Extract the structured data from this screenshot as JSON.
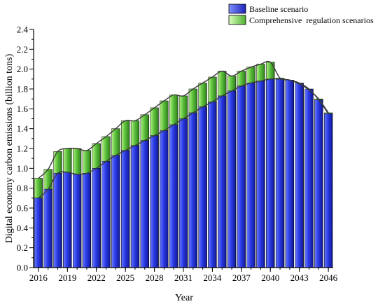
{
  "chart_data": {
    "type": "bar",
    "title": "",
    "xlabel": "Year",
    "ylabel": "Digital economy carbon emissions (billion tons)",
    "ylim": [
      0,
      2.4
    ],
    "y_ticks": [
      "0.0",
      "0.2",
      "0.4",
      "0.6",
      "0.8",
      "1.0",
      "1.2",
      "1.4",
      "1.6",
      "1.8",
      "2.0",
      "2.2",
      "2.4"
    ],
    "x_tick_labels": [
      "2016",
      "2019",
      "2022",
      "2025",
      "2028",
      "2031",
      "2034",
      "2037",
      "2040",
      "2043",
      "2046"
    ],
    "legend_position": "top-right",
    "categories": [
      2016,
      2017,
      2018,
      2019,
      2020,
      2021,
      2022,
      2023,
      2024,
      2025,
      2026,
      2027,
      2028,
      2029,
      2030,
      2031,
      2032,
      2033,
      2034,
      2035,
      2036,
      2037,
      2038,
      2039,
      2040,
      2041,
      2042,
      2043,
      2044,
      2045,
      2046
    ],
    "series": [
      {
        "name": "Baseline scenario",
        "color": "#2a2ad8",
        "values": [
          0.7,
          0.79,
          0.95,
          0.96,
          0.94,
          0.95,
          1.0,
          1.07,
          1.13,
          1.18,
          1.23,
          1.28,
          1.33,
          1.38,
          1.44,
          1.5,
          1.56,
          1.62,
          1.67,
          1.73,
          1.78,
          1.83,
          1.86,
          1.88,
          1.9,
          1.9,
          1.89,
          1.86,
          1.8,
          1.69,
          1.55
        ]
      },
      {
        "name": "Comprehensive  regulation scenarios",
        "color": "#55c040",
        "values": [
          0.9,
          0.99,
          1.17,
          1.2,
          1.2,
          1.18,
          1.25,
          1.32,
          1.4,
          1.48,
          1.48,
          1.54,
          1.61,
          1.68,
          1.74,
          1.73,
          1.8,
          1.86,
          1.92,
          1.98,
          1.93,
          1.98,
          2.02,
          2.05,
          2.07,
          1.91,
          1.89,
          1.85,
          1.79,
          1.7,
          1.56
        ]
      }
    ]
  }
}
